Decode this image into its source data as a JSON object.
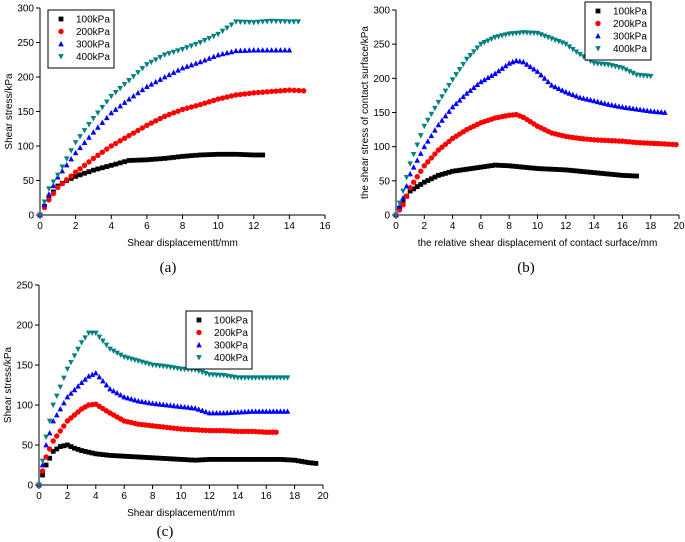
{
  "series_colors": {
    "100kPa": "#000000",
    "200kPa": "#ff0000",
    "300kPa": "#0000ff",
    "400kPa": "#008080"
  },
  "chart_data": [
    {
      "id": "a",
      "type": "scatter",
      "panel_label": "(a)",
      "xlabel": "Shear displacement​t/mm",
      "xlabel_text": "Shear displacementt/mm",
      "ylabel": "Shear stress/kPa",
      "xlim": [
        0,
        16
      ],
      "ylim": [
        0,
        300
      ],
      "xticks": [
        0,
        2,
        4,
        6,
        8,
        10,
        12,
        14,
        16
      ],
      "yticks": [
        0,
        50,
        100,
        150,
        200,
        250,
        300
      ],
      "legend": [
        "100kPa",
        "200kPa",
        "300kPa",
        "400kPa"
      ],
      "legend_position": "top-left",
      "series": [
        {
          "name": "100kPa",
          "marker": "square",
          "x": [
            0,
            0.5,
            1,
            1.5,
            2,
            3,
            4,
            5,
            6,
            7,
            8,
            9,
            10,
            11,
            12,
            12.5
          ],
          "y": [
            0,
            25,
            42,
            50,
            56,
            65,
            72,
            79,
            80,
            82,
            85,
            87,
            88,
            88,
            87,
            87
          ]
        },
        {
          "name": "200kPa",
          "marker": "circle",
          "x": [
            0,
            0.5,
            1,
            2,
            3,
            4,
            5,
            6,
            7,
            8,
            9,
            10,
            11,
            12,
            13,
            14,
            14.8
          ],
          "y": [
            0,
            22,
            40,
            62,
            82,
            100,
            115,
            130,
            143,
            153,
            160,
            168,
            174,
            177,
            179,
            181,
            180
          ]
        },
        {
          "name": "300kPa",
          "marker": "triangle-up",
          "x": [
            0,
            0.5,
            1,
            2,
            3,
            4,
            5,
            6,
            7,
            8,
            9,
            10,
            11,
            12,
            13,
            14
          ],
          "y": [
            0,
            30,
            55,
            90,
            120,
            148,
            168,
            186,
            200,
            213,
            222,
            232,
            238,
            239,
            239,
            239
          ]
        },
        {
          "name": "400kPa",
          "marker": "triangle-down",
          "x": [
            0,
            0.5,
            1,
            2,
            3,
            4,
            5,
            6,
            7,
            8,
            9,
            10,
            11,
            12,
            13,
            14,
            14.5
          ],
          "y": [
            0,
            38,
            58,
            105,
            140,
            172,
            195,
            218,
            232,
            240,
            250,
            262,
            280,
            279,
            281,
            280,
            280
          ]
        }
      ]
    },
    {
      "id": "b",
      "type": "scatter",
      "panel_label": "(b)",
      "xlabel": "the relative shear displacement of contact surface/mm",
      "ylabel": "the shear stress of contact surface/kPa",
      "xlim": [
        0,
        20
      ],
      "ylim": [
        0,
        300
      ],
      "xticks": [
        0,
        2,
        4,
        6,
        8,
        10,
        12,
        14,
        16,
        18,
        20
      ],
      "yticks": [
        0,
        50,
        100,
        150,
        200,
        250,
        300
      ],
      "legend": [
        "100kPa",
        "200kPa",
        "300kPa",
        "400kPa"
      ],
      "legend_position": "top-right",
      "series": [
        {
          "name": "100kPa",
          "marker": "square",
          "x": [
            0,
            0.5,
            1,
            2,
            3,
            4,
            5,
            6,
            7,
            8,
            9,
            10,
            11,
            12,
            13,
            14,
            15,
            16,
            17
          ],
          "y": [
            0,
            20,
            35,
            48,
            58,
            64,
            67,
            70,
            73,
            72,
            70,
            68,
            67,
            66,
            64,
            62,
            60,
            58,
            57
          ]
        },
        {
          "name": "200kPa",
          "marker": "circle",
          "x": [
            0,
            0.5,
            1,
            2,
            3,
            4,
            5,
            6,
            7,
            8,
            8.5,
            9,
            10,
            11,
            12,
            13,
            14,
            15,
            16,
            17,
            18,
            19,
            19.8
          ],
          "y": [
            0,
            15,
            40,
            72,
            95,
            112,
            125,
            135,
            142,
            146,
            147,
            143,
            130,
            120,
            115,
            112,
            110,
            109,
            108,
            106,
            105,
            104,
            103
          ]
        },
        {
          "name": "300kPa",
          "marker": "triangle-up",
          "x": [
            0,
            0.5,
            1,
            2,
            3,
            4,
            5,
            6,
            7,
            8,
            8.5,
            9,
            10,
            11,
            12,
            13,
            14,
            15,
            16,
            17,
            18,
            19
          ],
          "y": [
            0,
            25,
            60,
            100,
            132,
            158,
            178,
            195,
            207,
            222,
            226,
            224,
            210,
            190,
            180,
            172,
            167,
            162,
            158,
            155,
            152,
            150
          ]
        },
        {
          "name": "400kPa",
          "marker": "triangle-down",
          "x": [
            0,
            0.5,
            1,
            2,
            3,
            4,
            5,
            6,
            7,
            8,
            9,
            10,
            11,
            12,
            13,
            14,
            15,
            16,
            17,
            18
          ],
          "y": [
            0,
            35,
            75,
            130,
            165,
            198,
            228,
            250,
            260,
            265,
            267,
            266,
            258,
            250,
            235,
            222,
            220,
            215,
            205,
            203
          ]
        }
      ]
    },
    {
      "id": "c",
      "type": "scatter",
      "panel_label": "(c)",
      "xlabel": "Shear displacement/mm",
      "ylabel": "Shear stress/kPa",
      "xlim": [
        0,
        20
      ],
      "ylim": [
        0,
        250
      ],
      "xticks": [
        0,
        2,
        4,
        6,
        8,
        10,
        12,
        14,
        16,
        18,
        20
      ],
      "yticks": [
        0,
        50,
        100,
        150,
        200,
        250
      ],
      "legend": [
        "100kPa",
        "200kPa",
        "300kPa",
        "400kPa"
      ],
      "legend_position": "top-right",
      "series": [
        {
          "name": "100kPa",
          "marker": "square",
          "x": [
            0,
            0.5,
            1,
            1.5,
            2,
            2.5,
            3,
            4,
            5,
            6,
            7,
            8,
            9,
            10,
            11,
            12,
            13,
            14,
            15,
            16,
            17,
            18,
            19,
            19.5
          ],
          "y": [
            0,
            25,
            42,
            48,
            50,
            46,
            43,
            39,
            37,
            36,
            35,
            34,
            33,
            32,
            31,
            32,
            32,
            32,
            32,
            32,
            32,
            31,
            28,
            27
          ]
        },
        {
          "name": "200kPa",
          "marker": "circle",
          "x": [
            0,
            0.5,
            1,
            2,
            3,
            3.5,
            4,
            5,
            6,
            7,
            8,
            9,
            10,
            11,
            12,
            13,
            14,
            15,
            16,
            16.7
          ],
          "y": [
            0,
            35,
            55,
            80,
            95,
            100,
            101,
            90,
            80,
            76,
            74,
            72,
            70,
            69,
            68,
            68,
            67,
            67,
            66,
            66
          ]
        },
        {
          "name": "300kPa",
          "marker": "triangle-up",
          "x": [
            0,
            0.5,
            1,
            2,
            3,
            3.5,
            4,
            5,
            6,
            7,
            8,
            9,
            10,
            11,
            12,
            13,
            14,
            15,
            16,
            17,
            17.5
          ],
          "y": [
            0,
            50,
            80,
            110,
            128,
            136,
            140,
            120,
            110,
            105,
            102,
            100,
            98,
            96,
            90,
            90,
            91,
            92,
            92,
            92,
            92
          ]
        },
        {
          "name": "400kPa",
          "marker": "triangle-down",
          "x": [
            0,
            0.5,
            1,
            2,
            3,
            3.5,
            4,
            5,
            6,
            7,
            8,
            9,
            10,
            11,
            12,
            13,
            14,
            15,
            16,
            17,
            17.5
          ],
          "y": [
            0,
            60,
            100,
            145,
            178,
            190,
            190,
            170,
            160,
            155,
            150,
            148,
            145,
            144,
            138,
            137,
            134,
            134,
            134,
            134,
            134
          ]
        }
      ]
    }
  ]
}
